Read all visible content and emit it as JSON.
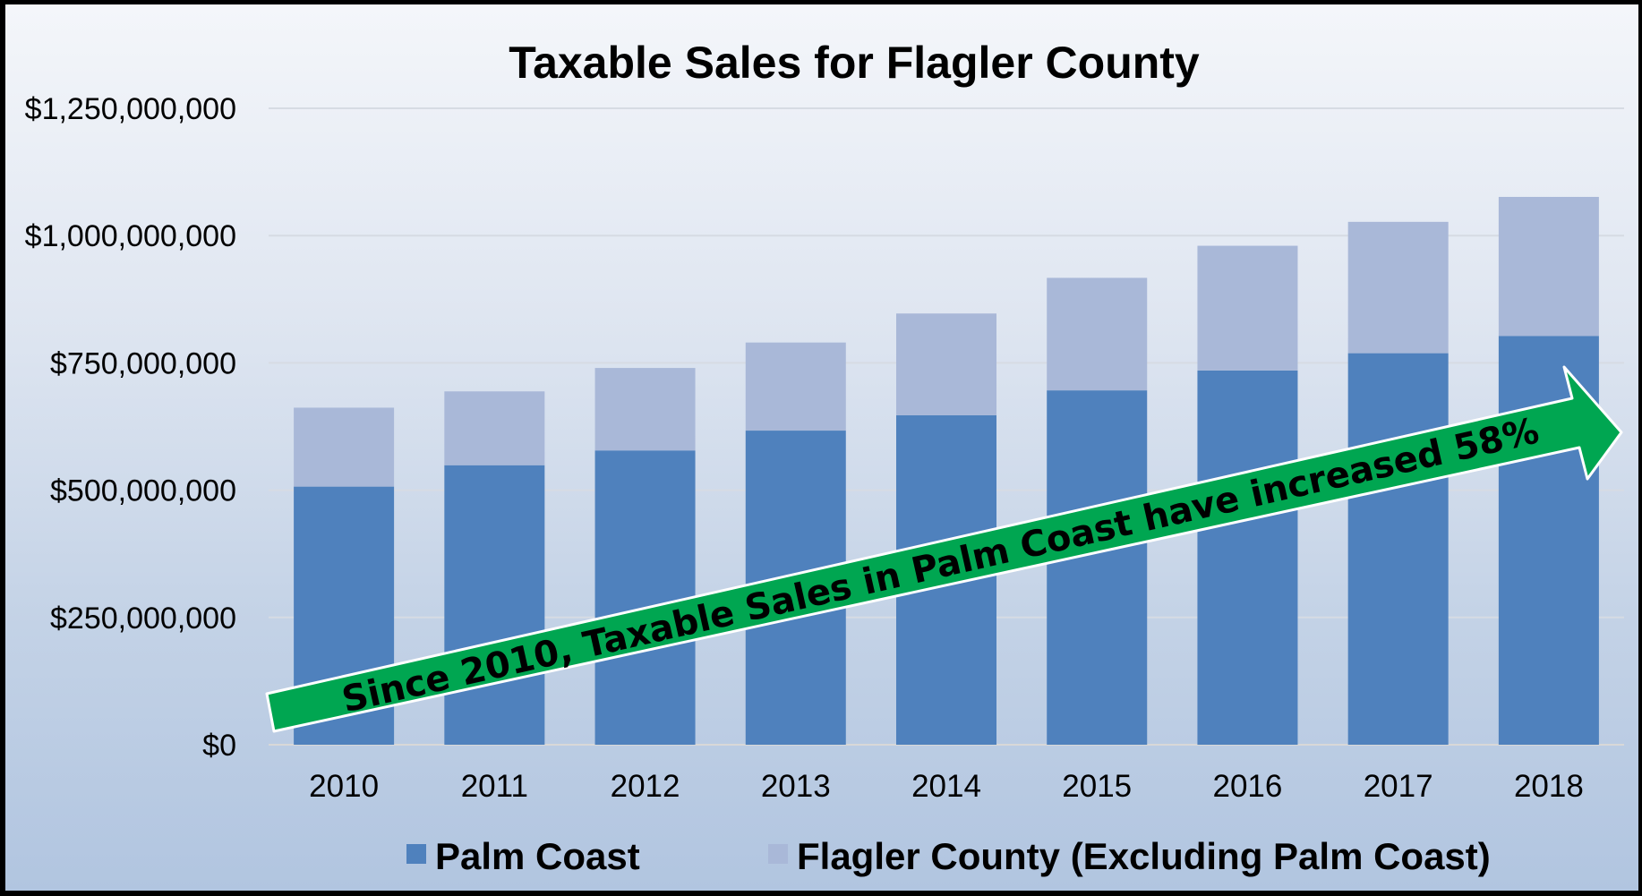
{
  "chart_data": {
    "type": "bar",
    "stacked": true,
    "title": "Taxable Sales for Flagler County",
    "xlabel": "",
    "ylabel": "",
    "categories": [
      "2010",
      "2011",
      "2012",
      "2013",
      "2014",
      "2015",
      "2016",
      "2017",
      "2018"
    ],
    "series": [
      {
        "name": "Palm Coast",
        "color": "#4f81bd",
        "values": [
          507000000,
          549000000,
          578000000,
          617000000,
          647000000,
          696000000,
          735000000,
          769000000,
          803000000
        ]
      },
      {
        "name": "Flagler County (Excluding Palm Coast)",
        "color": "#a9b8d8",
        "values": [
          155000000,
          145000000,
          162000000,
          173000000,
          200000000,
          221000000,
          245000000,
          258000000,
          273000000
        ]
      }
    ],
    "ylim": [
      0,
      1250000000
    ],
    "yticks": [
      0,
      250000000,
      500000000,
      750000000,
      1000000000,
      1250000000
    ],
    "ytick_labels": [
      "$0",
      "$250,000,000",
      "$500,000,000",
      "$750,000,000",
      "$1,000,000,000",
      "$1,250,000,000"
    ],
    "grid": true,
    "legend_position": "bottom",
    "annotation": {
      "text": "Since 2010, Taxable Sales in Palm Coast have increased 58%",
      "color": "#00a651"
    }
  }
}
